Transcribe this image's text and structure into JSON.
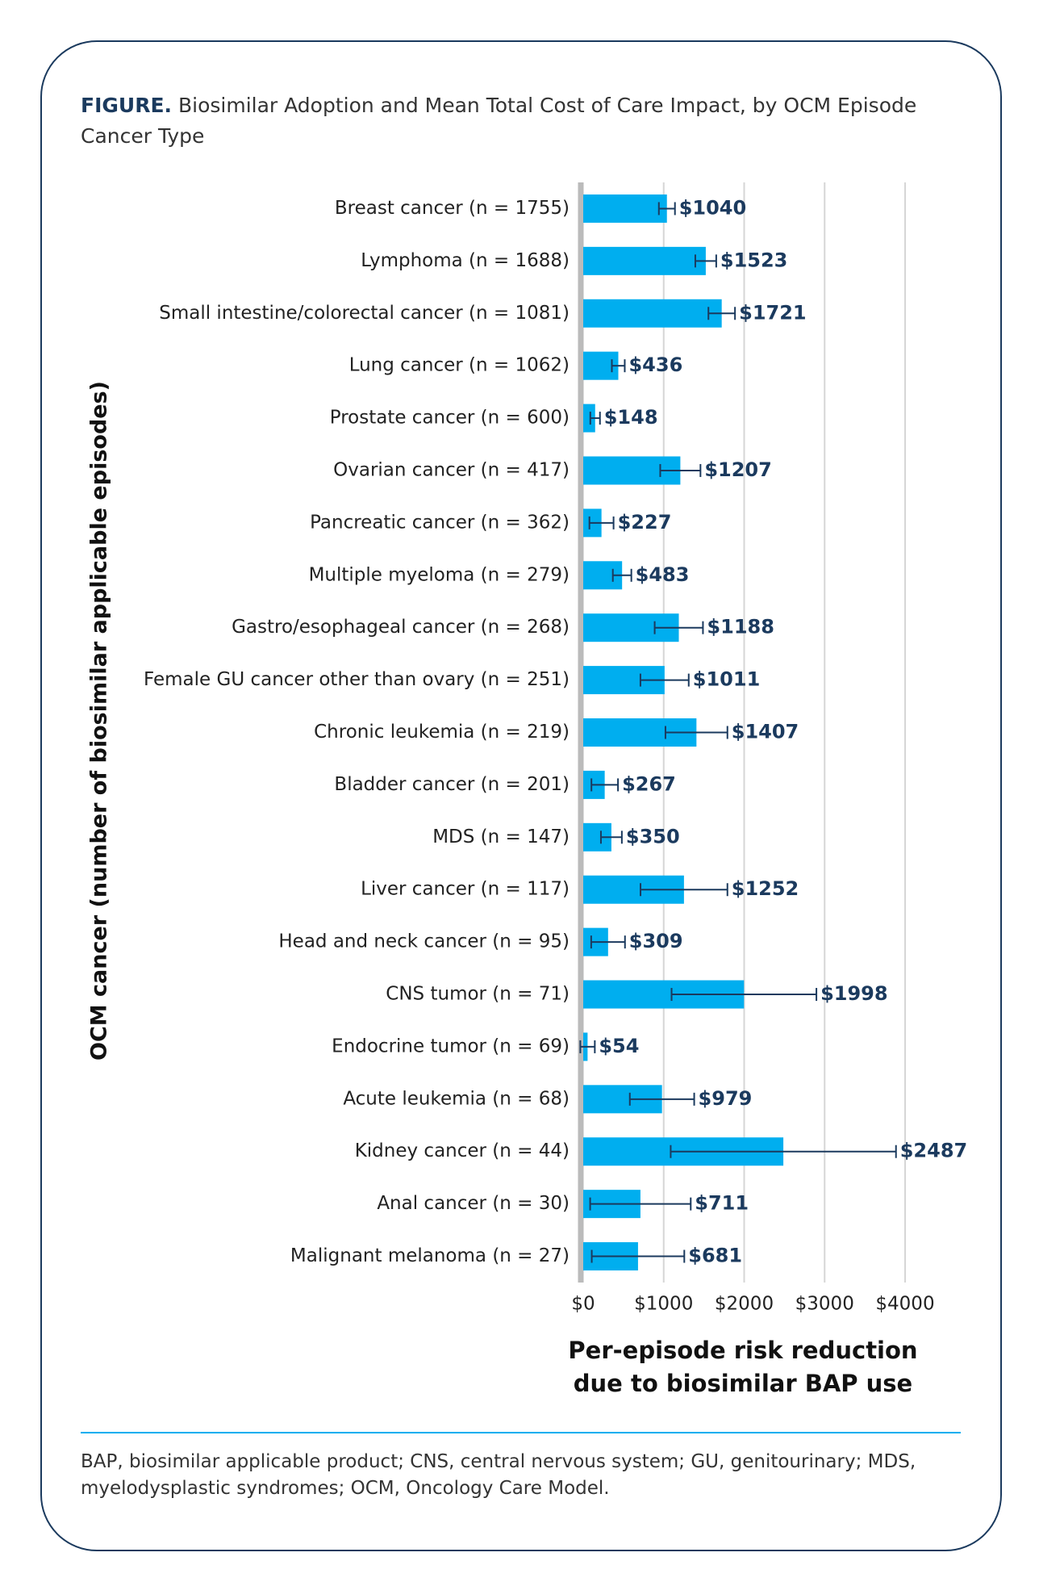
{
  "chart_data": {
    "type": "bar",
    "orientation": "horizontal",
    "title_prefix": "FIGURE.",
    "title": "Biosimilar Adoption and Mean Total Cost of Care Impact, by OCM Episode Cancer Type",
    "y_label": "OCM cancer (number of biosimilar applicable episodes)",
    "x_label_lines": [
      "Per-episode risk reduction",
      "due to biosimilar BAP use"
    ],
    "categories": [
      "Breast cancer (n = 1755)",
      "Lymphoma (n = 1688)",
      "Small intestine/colorectal cancer (n = 1081)",
      "Lung cancer (n = 1062)",
      "Prostate cancer (n = 600)",
      "Ovarian cancer (n = 417)",
      "Pancreatic cancer (n = 362)",
      "Multiple myeloma (n = 279)",
      "Gastro/esophageal cancer (n = 268)",
      "Female GU cancer other than ovary (n = 251)",
      "Chronic leukemia (n = 219)",
      "Bladder cancer (n = 201)",
      "MDS (n = 147)",
      "Liver cancer (n =  117)",
      "Head and neck cancer (n = 95)",
      "CNS tumor (n = 71)",
      "Endocrine tumor (n = 69)",
      "Acute leukemia (n = 68)",
      "Kidney cancer (n = 44)",
      "Anal cancer (n = 30)",
      "Malignant melanoma (n = 27)"
    ],
    "values": [
      1040,
      1523,
      1721,
      436,
      148,
      1207,
      227,
      483,
      1188,
      1011,
      1407,
      267,
      350,
      1252,
      309,
      1998,
      54,
      979,
      2487,
      711,
      681
    ],
    "value_labels": [
      "$1040",
      "$1523",
      "$1721",
      "$436",
      "$148",
      "$1207",
      "$227",
      "$483",
      "$1188",
      "$1011",
      "$1407",
      "$267",
      "$350",
      "$1252",
      "$309",
      "$1998",
      "$54",
      "$979",
      "$2487",
      "$711",
      "$681"
    ],
    "errors": [
      100,
      130,
      165,
      80,
      60,
      250,
      150,
      115,
      300,
      300,
      385,
      165,
      130,
      540,
      210,
      900,
      90,
      400,
      1400,
      625,
      575
    ],
    "color": "#00aeef",
    "error_color": "#1b3a5e",
    "xlim": [
      0,
      4000
    ],
    "xticks": [
      {
        "value": 0,
        "label": "$0"
      },
      {
        "value": 1000,
        "label": "$1000"
      },
      {
        "value": 2000,
        "label": "$2000"
      },
      {
        "value": 3000,
        "label": "$3000"
      },
      {
        "value": 4000,
        "label": "$4000"
      }
    ],
    "grid": true,
    "footnote": "BAP, biosimilar applicable product; CNS, central nervous system; GU, genitourinary; MDS, myelodysplastic syndromes; OCM, Oncology Care Model."
  }
}
